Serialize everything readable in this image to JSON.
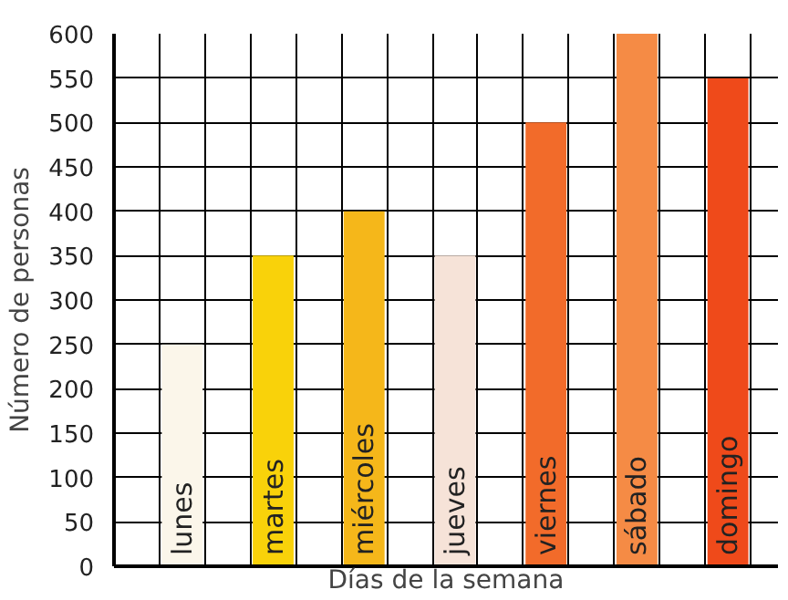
{
  "chart_data": {
    "type": "bar",
    "xlabel": "Días de la semana",
    "ylabel": "Número de personas",
    "categories": [
      "lunes",
      "martes",
      "miércoles",
      "jueves",
      "viernes",
      "sábado",
      "domingo"
    ],
    "values": [
      250,
      350,
      400,
      350,
      500,
      600,
      550
    ],
    "colors": [
      "#fbf6ea",
      "#f9d20a",
      "#f5b71a",
      "#f6e3d8",
      "#f26b2a",
      "#f58b45",
      "#ef4a1a"
    ],
    "ylim": [
      0,
      600
    ],
    "yticks": [
      0,
      50,
      100,
      150,
      200,
      250,
      300,
      350,
      400,
      450,
      500,
      550,
      600
    ],
    "grid": true
  }
}
